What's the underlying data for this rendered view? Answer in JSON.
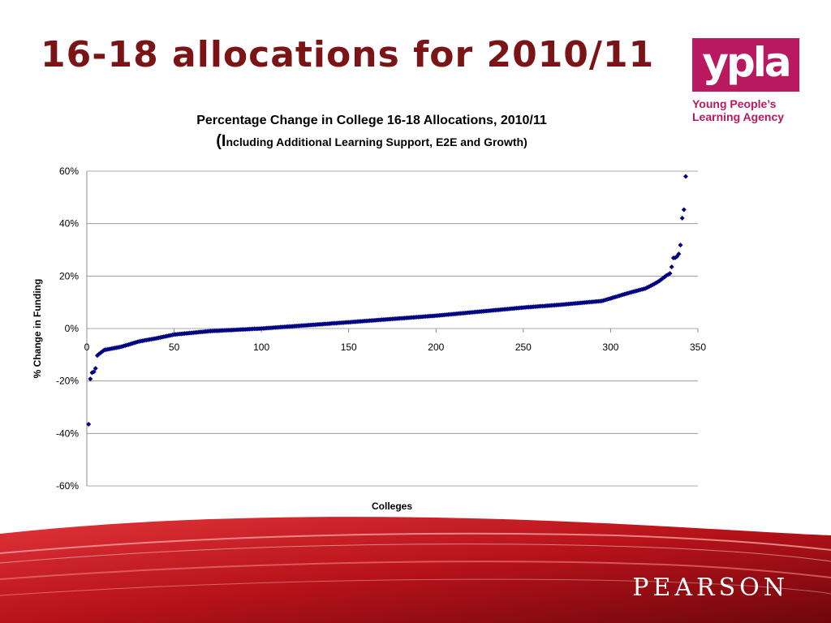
{
  "slide": {
    "title": "16-18 allocations for 2010/11"
  },
  "logo": {
    "mark": "ypla",
    "line1": "Young People’s",
    "line2": "Learning Agency"
  },
  "footer": {
    "brand": "PEARSON"
  },
  "colors": {
    "title": "#7a1416",
    "logo": "#b8195f",
    "marker": "#000080",
    "footer_red": "#c0141b"
  },
  "chart_data": {
    "type": "scatter",
    "title": "Percentage Change in College 16-18 Allocations, 2010/11",
    "subtitle_prefix": "(I",
    "subtitle": "ncluding Additional Learning Support, E2E and Growth)",
    "xlabel": "Colleges",
    "ylabel": "% Change in Funding",
    "xlim": [
      0,
      350
    ],
    "ylim": [
      -60,
      60
    ],
    "x_ticks": [
      "0",
      "50",
      "100",
      "150",
      "200",
      "250",
      "300",
      "350"
    ],
    "y_ticks": [
      "60%",
      "40%",
      "20%",
      "0%",
      "-20%",
      "-40%",
      "-60%"
    ],
    "grid": "horizontal",
    "legend": "none",
    "n_points": 343,
    "head_points": [
      [
        1,
        -36.5
      ],
      [
        2,
        -19.2
      ],
      [
        3,
        -16.8
      ],
      [
        4,
        -16.5
      ],
      [
        5,
        -15.2
      ],
      [
        6,
        -10.3
      ],
      [
        7,
        -9.7
      ]
    ],
    "body_curve": [
      [
        8,
        -9.2
      ],
      [
        10,
        -8.2
      ],
      [
        20,
        -6.9
      ],
      [
        30,
        -4.9
      ],
      [
        40,
        -3.7
      ],
      [
        50,
        -2.3
      ],
      [
        70,
        -1.0
      ],
      [
        100,
        0.0
      ],
      [
        150,
        2.4
      ],
      [
        200,
        4.9
      ],
      [
        250,
        8.0
      ],
      [
        270,
        9.0
      ],
      [
        295,
        10.5
      ],
      [
        310,
        13.5
      ],
      [
        320,
        15.3
      ],
      [
        325,
        17.0
      ],
      [
        328,
        18.2
      ],
      [
        332,
        20.2
      ],
      [
        334,
        21.0
      ]
    ],
    "tail_points": [
      [
        335,
        23.5
      ],
      [
        336,
        26.9
      ],
      [
        337,
        27.0
      ],
      [
        338,
        27.5
      ],
      [
        339,
        28.4
      ],
      [
        340,
        31.8
      ],
      [
        341,
        42.1
      ],
      [
        342,
        45.3
      ],
      [
        343,
        58.0
      ]
    ]
  }
}
